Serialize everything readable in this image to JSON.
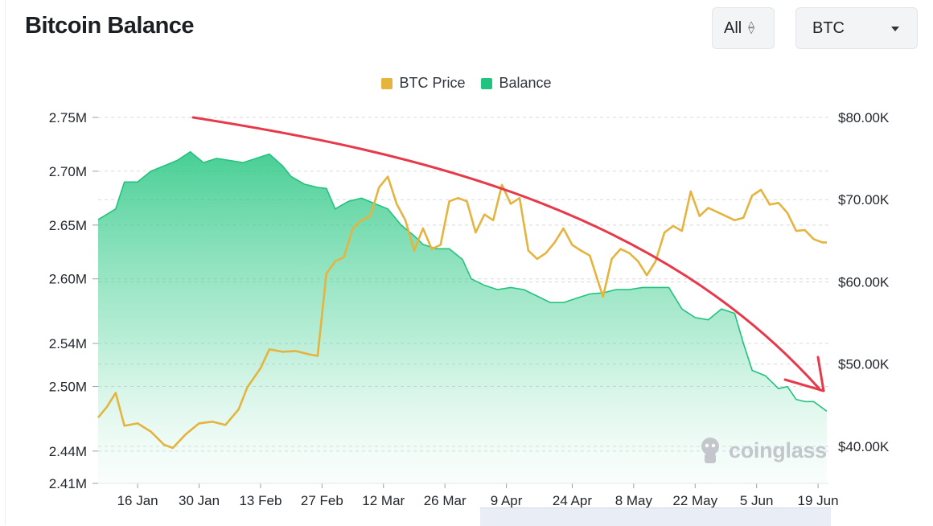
{
  "header": {
    "title": "Bitcoin Balance"
  },
  "controls": {
    "range_value": "All",
    "coin_value": "BTC"
  },
  "watermark": "coinglass",
  "colors": {
    "btc_price": "#E5B43F",
    "balance": "#20C47E",
    "annotation": "#E8394A"
  },
  "chart_data": {
    "type": "area",
    "title": "Bitcoin Balance",
    "legend_position": "top-center",
    "grid": true,
    "x_ticks": [
      "16 Jan",
      "30 Jan",
      "13 Feb",
      "27 Feb",
      "12 Mar",
      "26 Mar",
      "9 Apr",
      "24 Apr",
      "8 May",
      "22 May",
      "5 Jun",
      "19 Jun"
    ],
    "x_range": [
      "2024-01-07",
      "2024-06-21"
    ],
    "y_left": {
      "ticks": [
        "2.75M",
        "2.70M",
        "2.65M",
        "2.60M",
        "2.54M",
        "2.50M",
        "2.44M",
        "2.41M"
      ],
      "range": [
        2.41,
        2.75
      ],
      "unit": "M"
    },
    "y_right": {
      "ticks": [
        "$80.00K",
        "$70.00K",
        "$60.00K",
        "$50.00K",
        "$40.00K"
      ],
      "range": [
        35.5,
        80
      ],
      "unit": "K"
    },
    "series": [
      {
        "name": "Balance",
        "axis": "left",
        "style": "area",
        "points": [
          [
            "2024-01-07",
            2.655
          ],
          [
            "2024-01-09",
            2.66
          ],
          [
            "2024-01-11",
            2.665
          ],
          [
            "2024-01-13",
            2.69
          ],
          [
            "2024-01-16",
            2.69
          ],
          [
            "2024-01-19",
            2.7
          ],
          [
            "2024-01-22",
            2.705
          ],
          [
            "2024-01-25",
            2.71
          ],
          [
            "2024-01-28",
            2.718
          ],
          [
            "2024-01-31",
            2.708
          ],
          [
            "2024-02-03",
            2.712
          ],
          [
            "2024-02-06",
            2.71
          ],
          [
            "2024-02-09",
            2.708
          ],
          [
            "2024-02-12",
            2.712
          ],
          [
            "2024-02-15",
            2.716
          ],
          [
            "2024-02-18",
            2.705
          ],
          [
            "2024-02-20",
            2.695
          ],
          [
            "2024-02-23",
            2.688
          ],
          [
            "2024-02-26",
            2.685
          ],
          [
            "2024-02-28",
            2.684
          ],
          [
            "2024-03-01",
            2.665
          ],
          [
            "2024-03-04",
            2.672
          ],
          [
            "2024-03-07",
            2.675
          ],
          [
            "2024-03-10",
            2.67
          ],
          [
            "2024-03-13",
            2.665
          ],
          [
            "2024-03-16",
            2.65
          ],
          [
            "2024-03-19",
            2.64
          ],
          [
            "2024-03-21",
            2.632
          ],
          [
            "2024-03-24",
            2.628
          ],
          [
            "2024-03-27",
            2.628
          ],
          [
            "2024-03-30",
            2.618
          ],
          [
            "2024-04-01",
            2.6
          ],
          [
            "2024-04-04",
            2.594
          ],
          [
            "2024-04-07",
            2.59
          ],
          [
            "2024-04-10",
            2.592
          ],
          [
            "2024-04-13",
            2.59
          ],
          [
            "2024-04-16",
            2.584
          ],
          [
            "2024-04-19",
            2.578
          ],
          [
            "2024-04-22",
            2.578
          ],
          [
            "2024-04-25",
            2.582
          ],
          [
            "2024-04-28",
            2.586
          ],
          [
            "2024-05-01",
            2.587
          ],
          [
            "2024-05-04",
            2.59
          ],
          [
            "2024-05-07",
            2.59
          ],
          [
            "2024-05-10",
            2.592
          ],
          [
            "2024-05-13",
            2.592
          ],
          [
            "2024-05-16",
            2.592
          ],
          [
            "2024-05-19",
            2.572
          ],
          [
            "2024-05-22",
            2.564
          ],
          [
            "2024-05-25",
            2.562
          ],
          [
            "2024-05-28",
            2.572
          ],
          [
            "2024-05-31",
            2.568
          ],
          [
            "2024-06-02",
            2.54
          ],
          [
            "2024-06-04",
            2.515
          ],
          [
            "2024-06-07",
            2.51
          ],
          [
            "2024-06-10",
            2.498
          ],
          [
            "2024-06-12",
            2.5
          ],
          [
            "2024-06-14",
            2.488
          ],
          [
            "2024-06-16",
            2.486
          ],
          [
            "2024-06-18",
            2.486
          ],
          [
            "2024-06-21",
            2.477
          ]
        ]
      },
      {
        "name": "BTC Price",
        "axis": "right",
        "style": "line",
        "points": [
          [
            "2024-01-07",
            43.5
          ],
          [
            "2024-01-09",
            44.8
          ],
          [
            "2024-01-11",
            46.5
          ],
          [
            "2024-01-13",
            42.5
          ],
          [
            "2024-01-16",
            42.8
          ],
          [
            "2024-01-19",
            41.8
          ],
          [
            "2024-01-22",
            40.2
          ],
          [
            "2024-01-24",
            39.8
          ],
          [
            "2024-01-27",
            41.5
          ],
          [
            "2024-01-30",
            42.8
          ],
          [
            "2024-02-02",
            43.0
          ],
          [
            "2024-02-05",
            42.6
          ],
          [
            "2024-02-08",
            44.5
          ],
          [
            "2024-02-10",
            47.2
          ],
          [
            "2024-02-13",
            49.5
          ],
          [
            "2024-02-15",
            51.8
          ],
          [
            "2024-02-18",
            51.5
          ],
          [
            "2024-02-21",
            51.6
          ],
          [
            "2024-02-24",
            51.2
          ],
          [
            "2024-02-26",
            51.0
          ],
          [
            "2024-02-28",
            61.0
          ],
          [
            "2024-03-01",
            62.5
          ],
          [
            "2024-03-03",
            63.0
          ],
          [
            "2024-03-05",
            66.5
          ],
          [
            "2024-03-07",
            67.5
          ],
          [
            "2024-03-09",
            68.0
          ],
          [
            "2024-03-11",
            71.5
          ],
          [
            "2024-03-13",
            72.8
          ],
          [
            "2024-03-15",
            69.5
          ],
          [
            "2024-03-17",
            67.5
          ],
          [
            "2024-03-19",
            63.8
          ],
          [
            "2024-03-21",
            66.5
          ],
          [
            "2024-03-23",
            64.0
          ],
          [
            "2024-03-25",
            64.5
          ],
          [
            "2024-03-27",
            69.8
          ],
          [
            "2024-03-29",
            70.2
          ],
          [
            "2024-03-31",
            69.8
          ],
          [
            "2024-04-02",
            66.0
          ],
          [
            "2024-04-04",
            68.2
          ],
          [
            "2024-04-06",
            67.5
          ],
          [
            "2024-04-08",
            71.8
          ],
          [
            "2024-04-10",
            69.5
          ],
          [
            "2024-04-12",
            70.2
          ],
          [
            "2024-04-14",
            63.8
          ],
          [
            "2024-04-16",
            62.8
          ],
          [
            "2024-04-18",
            63.5
          ],
          [
            "2024-04-20",
            64.8
          ],
          [
            "2024-04-22",
            66.5
          ],
          [
            "2024-04-24",
            64.5
          ],
          [
            "2024-04-26",
            63.8
          ],
          [
            "2024-04-28",
            63.2
          ],
          [
            "2024-05-01",
            58.2
          ],
          [
            "2024-05-03",
            62.8
          ],
          [
            "2024-05-05",
            64.0
          ],
          [
            "2024-05-07",
            63.5
          ],
          [
            "2024-05-09",
            62.5
          ],
          [
            "2024-05-11",
            60.8
          ],
          [
            "2024-05-13",
            62.5
          ],
          [
            "2024-05-15",
            66.0
          ],
          [
            "2024-05-17",
            66.8
          ],
          [
            "2024-05-19",
            66.2
          ],
          [
            "2024-05-21",
            71.0
          ],
          [
            "2024-05-23",
            68.0
          ],
          [
            "2024-05-25",
            69.0
          ],
          [
            "2024-05-27",
            68.5
          ],
          [
            "2024-05-29",
            68.0
          ],
          [
            "2024-05-31",
            67.5
          ],
          [
            "2024-06-02",
            67.8
          ],
          [
            "2024-06-04",
            70.5
          ],
          [
            "2024-06-06",
            71.2
          ],
          [
            "2024-06-08",
            69.4
          ],
          [
            "2024-06-10",
            69.6
          ],
          [
            "2024-06-12",
            68.4
          ],
          [
            "2024-06-14",
            66.2
          ],
          [
            "2024-06-16",
            66.3
          ],
          [
            "2024-06-18",
            65.2
          ],
          [
            "2024-06-20",
            64.8
          ],
          [
            "2024-06-21",
            64.8
          ]
        ]
      }
    ],
    "annotations": [
      {
        "type": "arrow",
        "color": "#E8394A",
        "direction": "downward curve from top-left to bottom-right"
      }
    ]
  }
}
